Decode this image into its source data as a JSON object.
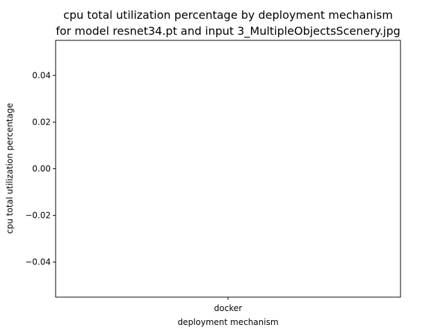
{
  "chart_data": {
    "type": "bar",
    "title_lines": [
      "cpu total utilization percentage by deployment mechanism",
      "for model resnet34.pt and input 3_MultipleObjectsScenery.jpg"
    ],
    "xlabel": "deployment mechanism",
    "ylabel": "cpu total utilization percentage",
    "categories": [
      "docker"
    ],
    "values": [
      0
    ],
    "ylim": [
      -0.055,
      0.055
    ],
    "yticks": [
      0.04,
      0.02,
      0.0,
      -0.02,
      -0.04
    ],
    "ytick_labels": [
      "0.04",
      "0.02",
      "0.00",
      "−0.02",
      "−0.04"
    ],
    "grid": false,
    "legend": "none"
  }
}
